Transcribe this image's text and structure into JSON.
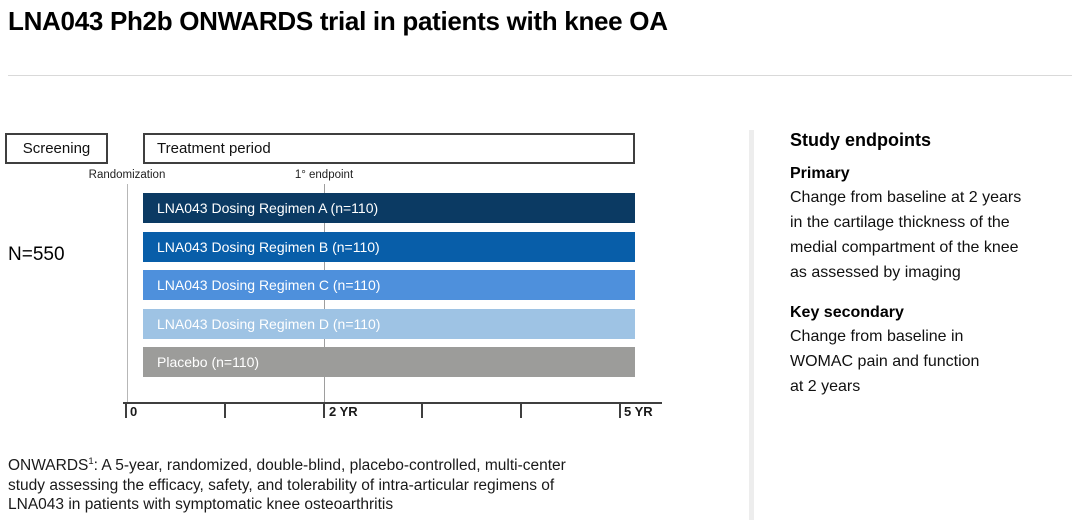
{
  "title": "LNA043 Ph2b ONWARDS trial in patients with knee OA",
  "timeline": {
    "screening_label": "Screening",
    "treatment_label": "Treatment period",
    "randomization_label": "Randomization",
    "primary_endpoint_label": "1° endpoint",
    "n_label": "N=550",
    "arms": [
      {
        "label": "LNA043 Dosing Regimen A (n=110)",
        "color": "#0b3a63"
      },
      {
        "label": "LNA043 Dosing Regimen B (n=110)",
        "color": "#085ea9"
      },
      {
        "label": "LNA043 Dosing Regimen C (n=110)",
        "color": "#4e90dc"
      },
      {
        "label": "LNA043 Dosing Regimen D (n=110)",
        "color": "#9ec3e4"
      },
      {
        "label": "Placebo (n=110)",
        "color": "#9c9c9a"
      }
    ],
    "axis": {
      "tick_years": [
        0,
        1,
        2,
        3,
        4,
        5
      ],
      "years_total": 5,
      "endpoint_year": 2,
      "label_0": "0",
      "label_2yr": "2 YR",
      "label_5yr": "5 YR"
    }
  },
  "endpoints_panel": {
    "heading": "Study endpoints",
    "primary_heading": "Primary",
    "primary_text": "Change from baseline at 2 years\nin the cartilage thickness of the\nmedial compartment of the knee\nas assessed by imaging",
    "secondary_heading": "Key secondary",
    "secondary_text": "Change from baseline in\nWOMAC pain and function\nat 2 years"
  },
  "footnote": {
    "prefix": "ONWARDS",
    "superscript": "1",
    "text": ": A 5-year, randomized, double-blind, placebo-controlled, multi-center\nstudy assessing the efficacy, safety, and tolerability of intra-articular regimens of\nLNA043 in patients with symptomatic knee osteoarthritis"
  }
}
